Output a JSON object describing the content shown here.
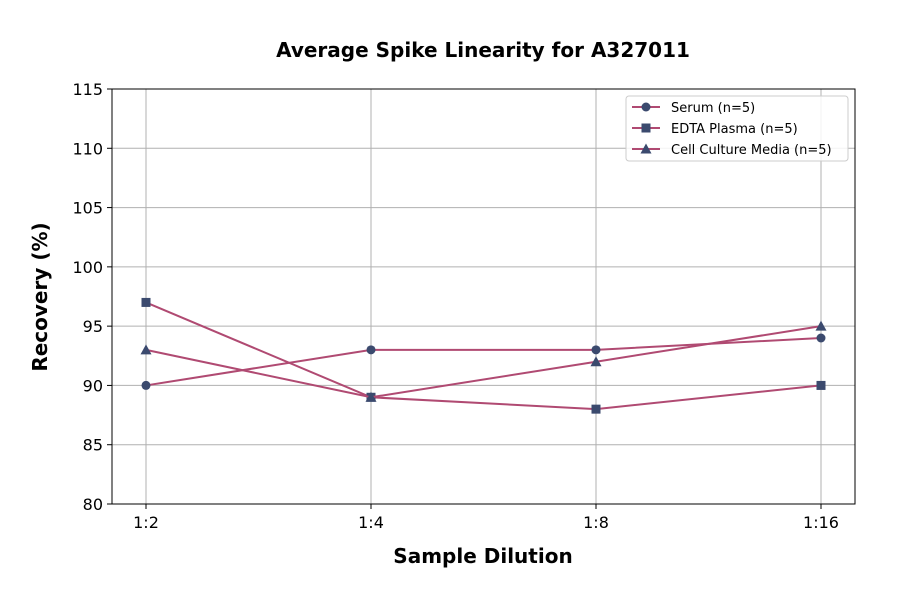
{
  "chart_data": {
    "type": "line",
    "title": "Average Spike Linearity for A327011",
    "xlabel": "Sample Dilution",
    "ylabel": "Recovery (%)",
    "categories": [
      "1:2",
      "1:4",
      "1:8",
      "1:16"
    ],
    "ylim": [
      80,
      115
    ],
    "yticks": [
      80,
      85,
      90,
      95,
      100,
      105,
      110,
      115
    ],
    "grid": true,
    "legend_position": "top-right",
    "line_color": "#b04a72",
    "marker_color": "#3b4a6e",
    "series": [
      {
        "name": "Serum (n=5)",
        "marker": "circle",
        "values": [
          90,
          93,
          93,
          94
        ]
      },
      {
        "name": "EDTA Plasma (n=5)",
        "marker": "square",
        "values": [
          97,
          89,
          88,
          90
        ]
      },
      {
        "name": "Cell Culture Media (n=5)",
        "marker": "triangle",
        "values": [
          93,
          89,
          92,
          95
        ]
      }
    ]
  }
}
